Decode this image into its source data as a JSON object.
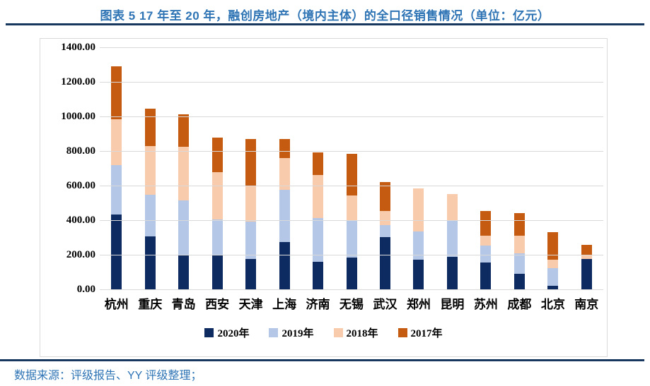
{
  "header": {
    "title": "图表 5 17 年至 20 年，融创房地产（境内主体）的全口径销售情况（单位：亿元）"
  },
  "footer": {
    "source": "数据来源：评级报告、YY 评级整理；"
  },
  "colors": {
    "title_blue": "#2E74B5",
    "rule_navy": "#17375E",
    "grid_gray": "#D9D9D9",
    "series_2020": "#0E2B61",
    "series_2019": "#B4C7E7",
    "series_2018": "#F8CBAD",
    "series_2017": "#C55A11"
  },
  "chart_data": {
    "type": "bar",
    "stacked": true,
    "title": "图表 5 17 年至 20 年，融创房地产（境内主体）的全口径销售情况（单位：亿元）",
    "xlabel": "",
    "ylabel": "",
    "ylim": [
      0,
      1400
    ],
    "ytick_step": 200,
    "ytick_labels": [
      "0.00",
      "200.00",
      "400.00",
      "600.00",
      "800.00",
      "1000.00",
      "1200.00",
      "1400.00"
    ],
    "grid": true,
    "legend_position": "bottom",
    "categories": [
      "杭州",
      "重庆",
      "青岛",
      "西安",
      "天津",
      "上海",
      "济南",
      "无锡",
      "武汉",
      "郑州",
      "昆明",
      "苏州",
      "成都",
      "北京",
      "南京"
    ],
    "series": [
      {
        "name": "2020年",
        "color": "#0E2B61",
        "values": [
          432,
          307,
          195,
          198,
          174,
          272,
          160,
          183,
          303,
          170,
          188,
          156,
          90,
          20,
          177
        ]
      },
      {
        "name": "2019年",
        "color": "#B4C7E7",
        "values": [
          285,
          242,
          320,
          205,
          217,
          303,
          252,
          211,
          68,
          164,
          210,
          97,
          120,
          103,
          0
        ]
      },
      {
        "name": "2018年",
        "color": "#F8CBAD",
        "values": [
          265,
          281,
          310,
          274,
          207,
          183,
          250,
          150,
          84,
          249,
          152,
          56,
          100,
          47,
          17
        ]
      },
      {
        "name": "2017年",
        "color": "#C55A11",
        "values": [
          308,
          215,
          188,
          201,
          272,
          110,
          130,
          241,
          165,
          0,
          0,
          143,
          132,
          161,
          63
        ]
      }
    ],
    "totals": [
      1290,
      1045,
      1013,
      878,
      870,
      868,
      792,
      785,
      620,
      583,
      550,
      452,
      442,
      331,
      257
    ]
  }
}
